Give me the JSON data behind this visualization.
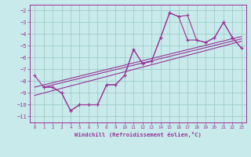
{
  "background_color": "#c8eaea",
  "grid_color": "#a0cccc",
  "line_color": "#993399",
  "xlabel": "Windchill (Refroidissement éolien,°C)",
  "ylim": [
    -11.5,
    -1.5
  ],
  "xlim": [
    -0.5,
    23.5
  ],
  "yticks": [
    -11,
    -10,
    -9,
    -8,
    -7,
    -6,
    -5,
    -4,
    -3,
    -2
  ],
  "xticks": [
    0,
    1,
    2,
    3,
    4,
    5,
    6,
    7,
    8,
    9,
    10,
    11,
    12,
    13,
    14,
    15,
    16,
    17,
    18,
    19,
    20,
    21,
    22,
    23
  ],
  "series1_x": [
    0,
    1,
    2,
    3,
    4,
    5,
    6,
    7,
    8,
    9,
    10,
    11,
    12,
    13,
    14,
    15,
    16,
    17,
    18,
    19,
    20,
    21,
    22,
    23
  ],
  "series1_y": [
    -7.5,
    -8.5,
    -8.5,
    -9.0,
    -10.5,
    -10.0,
    -10.0,
    -10.0,
    -8.3,
    -8.3,
    -7.5,
    -5.3,
    -6.5,
    -6.3,
    -4.3,
    -2.2,
    -2.5,
    -4.5,
    -4.5,
    -4.7,
    -4.3,
    -3.0,
    -4.3,
    -5.2
  ],
  "series2_x": [
    1,
    2,
    3,
    4,
    5,
    6,
    7,
    8,
    9,
    10,
    11,
    12,
    13,
    14,
    15,
    16,
    17,
    18,
    19,
    20,
    21,
    22,
    23
  ],
  "series2_y": [
    -8.5,
    -8.5,
    -9.0,
    -10.5,
    -10.0,
    -10.0,
    -10.0,
    -8.3,
    -8.3,
    -7.5,
    -5.3,
    -6.5,
    -6.3,
    -4.3,
    -2.2,
    -2.5,
    -2.4,
    -4.5,
    -4.7,
    -4.3,
    -3.0,
    -4.3,
    -5.2
  ],
  "line3_x": [
    0,
    23
  ],
  "line3_y": [
    -8.5,
    -4.2
  ],
  "line4_x": [
    1,
    23
  ],
  "line4_y": [
    -8.5,
    -4.4
  ],
  "line5_x": [
    0,
    23
  ],
  "line5_y": [
    -9.2,
    -4.6
  ]
}
